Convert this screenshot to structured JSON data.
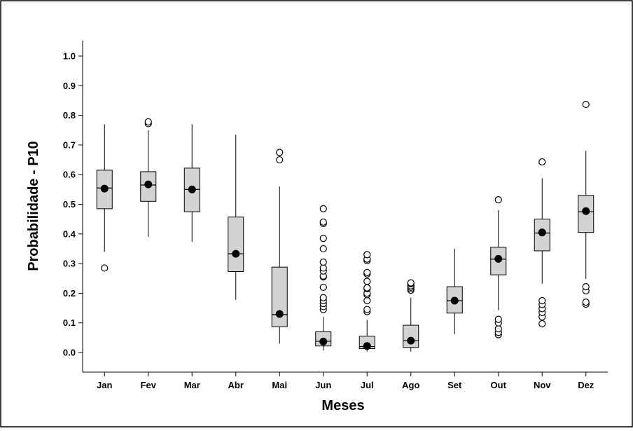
{
  "chart_data": {
    "type": "boxplot",
    "title": "",
    "xlabel": "Meses",
    "ylabel": "Probabilidade - P10",
    "ylim": [
      -0.08,
      1.08
    ],
    "yticks": [
      "0.0",
      "0.1",
      "0.2",
      "0.3",
      "0.4",
      "0.5",
      "0.6",
      "0.7",
      "0.8",
      "0.9",
      "1.0"
    ],
    "grid": false,
    "legend": "none",
    "colors": {
      "box_fill": "#d3d3d3",
      "stroke": "#000000",
      "mean": "#000000",
      "outlier_fill": "#ffffff"
    },
    "categories": [
      "Jan",
      "Fev",
      "Mar",
      "Abr",
      "Mai",
      "Jun",
      "Jul",
      "Ago",
      "Set",
      "Out",
      "Nov",
      "Dez"
    ],
    "boxes": [
      {
        "q1": 0.485,
        "median": 0.555,
        "q3": 0.615,
        "whisker_low": 0.34,
        "whisker_high": 0.77,
        "mean": 0.553,
        "outliers": [
          0.285
        ]
      },
      {
        "q1": 0.51,
        "median": 0.565,
        "q3": 0.61,
        "whisker_low": 0.39,
        "whisker_high": 0.75,
        "mean": 0.567,
        "outliers": [
          0.772,
          0.778
        ]
      },
      {
        "q1": 0.475,
        "median": 0.55,
        "q3": 0.622,
        "whisker_low": 0.373,
        "whisker_high": 0.77,
        "mean": 0.55,
        "outliers": []
      },
      {
        "q1": 0.273,
        "median": 0.333,
        "q3": 0.457,
        "whisker_low": 0.178,
        "whisker_high": 0.735,
        "mean": 0.333,
        "outliers": []
      },
      {
        "q1": 0.087,
        "median": 0.128,
        "q3": 0.288,
        "whisker_low": 0.03,
        "whisker_high": 0.56,
        "mean": 0.13,
        "outliers": [
          0.65,
          0.675
        ]
      },
      {
        "q1": 0.022,
        "median": 0.038,
        "q3": 0.07,
        "whisker_low": 0.007,
        "whisker_high": 0.12,
        "mean": 0.037,
        "outliers": [
          0.145,
          0.155,
          0.165,
          0.175,
          0.185,
          0.22,
          0.255,
          0.258,
          0.275,
          0.285,
          0.305,
          0.35,
          0.385,
          0.435,
          0.44,
          0.485
        ]
      },
      {
        "q1": 0.013,
        "median": 0.02,
        "q3": 0.055,
        "whisker_low": 0.003,
        "whisker_high": 0.11,
        "mean": 0.022,
        "outliers": [
          0.138,
          0.145,
          0.175,
          0.195,
          0.2,
          0.215,
          0.218,
          0.24,
          0.265,
          0.27,
          0.31,
          0.315,
          0.33
        ]
      },
      {
        "q1": 0.017,
        "median": 0.04,
        "q3": 0.092,
        "whisker_low": 0.003,
        "whisker_high": 0.185,
        "mean": 0.04,
        "outliers": [
          0.21,
          0.215,
          0.22,
          0.225,
          0.232,
          0.235
        ]
      },
      {
        "q1": 0.133,
        "median": 0.175,
        "q3": 0.222,
        "whisker_low": 0.062,
        "whisker_high": 0.35,
        "mean": 0.175,
        "outliers": []
      },
      {
        "q1": 0.262,
        "median": 0.315,
        "q3": 0.355,
        "whisker_low": 0.143,
        "whisker_high": 0.48,
        "mean": 0.316,
        "outliers": [
          0.06,
          0.068,
          0.08,
          0.1,
          0.112,
          0.515
        ]
      },
      {
        "q1": 0.343,
        "median": 0.403,
        "q3": 0.45,
        "whisker_low": 0.232,
        "whisker_high": 0.588,
        "mean": 0.405,
        "outliers": [
          0.097,
          0.12,
          0.135,
          0.148,
          0.162,
          0.175,
          0.643
        ]
      },
      {
        "q1": 0.405,
        "median": 0.475,
        "q3": 0.53,
        "whisker_low": 0.248,
        "whisker_high": 0.68,
        "mean": 0.477,
        "outliers": [
          0.163,
          0.17,
          0.208,
          0.222,
          0.837
        ]
      }
    ]
  }
}
